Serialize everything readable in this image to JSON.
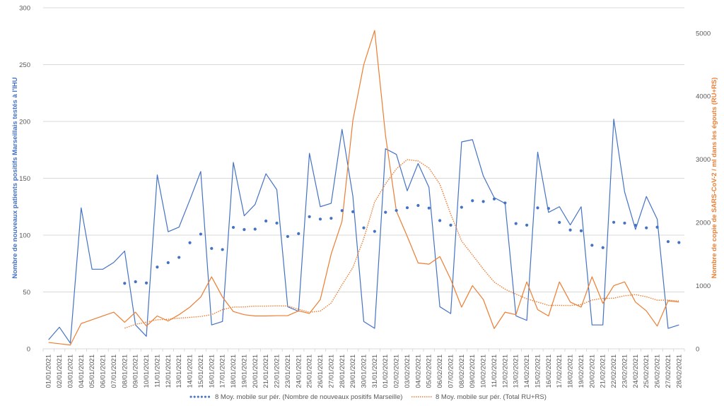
{
  "chart_data": {
    "type": "line",
    "categories": [
      "01/01/2021",
      "02/01/2021",
      "03/01/2021",
      "04/01/2021",
      "05/01/2021",
      "06/01/2021",
      "07/01/2021",
      "08/01/2021",
      "09/01/2021",
      "10/01/2021",
      "11/01/2021",
      "12/01/2021",
      "13/01/2021",
      "14/01/2021",
      "15/01/2021",
      "16/01/2021",
      "17/01/2021",
      "18/01/2021",
      "19/01/2021",
      "20/01/2021",
      "21/01/2021",
      "22/01/2021",
      "23/01/2021",
      "24/01/2021",
      "25/01/2021",
      "26/01/2021",
      "27/01/2021",
      "28/01/2021",
      "29/01/2021",
      "30/01/2021",
      "31/01/2021",
      "01/02/2021",
      "02/02/2021",
      "03/02/2021",
      "04/02/2021",
      "05/02/2021",
      "06/02/2021",
      "07/02/2021",
      "08/02/2021",
      "09/02/2021",
      "10/02/2021",
      "11/02/2021",
      "12/02/2021",
      "13/02/2021",
      "14/02/2021",
      "15/02/2021",
      "16/02/2021",
      "17/02/2021",
      "18/02/2021",
      "19/02/2021",
      "20/02/2021",
      "21/02/2021",
      "22/02/2021",
      "23/02/2021",
      "24/02/2021",
      "25/02/2021",
      "26/02/2021",
      "27/02/2021",
      "28/02/2021"
    ],
    "series": [
      {
        "axis": "left",
        "values": [
          8,
          19,
          5,
          124,
          70,
          70,
          76,
          86,
          21,
          11,
          153,
          103,
          107,
          131,
          156,
          21,
          24,
          164,
          117,
          127,
          154,
          140,
          37,
          33,
          172,
          125,
          128,
          193,
          134,
          24,
          18,
          176,
          171,
          139,
          163,
          142,
          37,
          31,
          182,
          184,
          152,
          133,
          128,
          29,
          25,
          173,
          120,
          125,
          109,
          125,
          21,
          21,
          202,
          138,
          105,
          134,
          114,
          18,
          21
        ]
      },
      {
        "axis": "right",
        "values": [
          100,
          80,
          60,
          400,
          460,
          520,
          580,
          420,
          580,
          360,
          520,
          440,
          540,
          660,
          820,
          1140,
          820,
          590,
          540,
          520,
          520,
          525,
          525,
          600,
          560,
          780,
          1500,
          2020,
          3620,
          4500,
          5040,
          3380,
          2180,
          1780,
          1360,
          1340,
          1460,
          1100,
          660,
          1000,
          780,
          320,
          580,
          540,
          1060,
          620,
          520,
          1060,
          740,
          660,
          1140,
          720,
          1000,
          1060,
          740,
          600,
          360,
          760,
          740
        ]
      },
      {
        "name": "8 Moy. mobile sur pér. (Nombre de nouveaux positifs Marseille)",
        "axis": "left",
        "style": "dots",
        "values": [
          null,
          null,
          null,
          null,
          null,
          null,
          null,
          57.6,
          59,
          57.9,
          71.9,
          75.8,
          80.4,
          93.3,
          100.9,
          88.3,
          87.3,
          106.8,
          104.9,
          105.3,
          112.4,
          110.6,
          98.8,
          101.3,
          116.2,
          114.1,
          114.8,
          121.6,
          120.6,
          106.4,
          103.3,
          120.1,
          121.7,
          124.1,
          126.1,
          123.8,
          112.8,
          108.8,
          124.5,
          130.3,
          129.6,
          131.8,
          128.3,
          110.2,
          108.8,
          124,
          123.5,
          111.2,
          104.5,
          103.8,
          91.1,
          89,
          111.3,
          110.6,
          108.6,
          106.4,
          107,
          94.3,
          93.5
        ]
      },
      {
        "name": "8 Moy. mobile sur pér. (Total RU+RS)",
        "axis": "right",
        "style": "dotted-line",
        "values": [
          null,
          null,
          null,
          null,
          null,
          null,
          null,
          327.5,
          387.5,
          422.5,
          460,
          467.5,
          485,
          497.5,
          512.5,
          540,
          620,
          661,
          663,
          676,
          676,
          680,
          678,
          626,
          578,
          598,
          724,
          1014,
          1288,
          1746,
          2324,
          2612,
          2848,
          2996,
          2974,
          2862,
          2606,
          2132,
          1706,
          1486,
          1262,
          1058,
          944,
          866,
          792,
          740,
          688,
          688,
          686,
          700,
          772,
          798,
          802,
          840,
          858,
          824,
          770,
          770,
          758
        ]
      }
    ],
    "y_left": {
      "label": "Nombre de nouveaux patients positifs Marseillais testés à l'IHU",
      "min": 0,
      "max": 300,
      "ticks": [
        0,
        50,
        100,
        150,
        200,
        250,
        300
      ]
    },
    "y_right": {
      "label": "Nombre de copie de SARS-CoV-2 / ml dans les égouts (RU+RS)",
      "min": 0,
      "max": 5400,
      "ticks": [
        0,
        1000,
        2000,
        3000,
        4000,
        5000
      ]
    },
    "grid": true,
    "legend_position": "bottom",
    "colors": {
      "blue": "#4472C4",
      "orange": "#ED7D31",
      "grid": "#D9D9D9",
      "text": "#595959"
    }
  }
}
